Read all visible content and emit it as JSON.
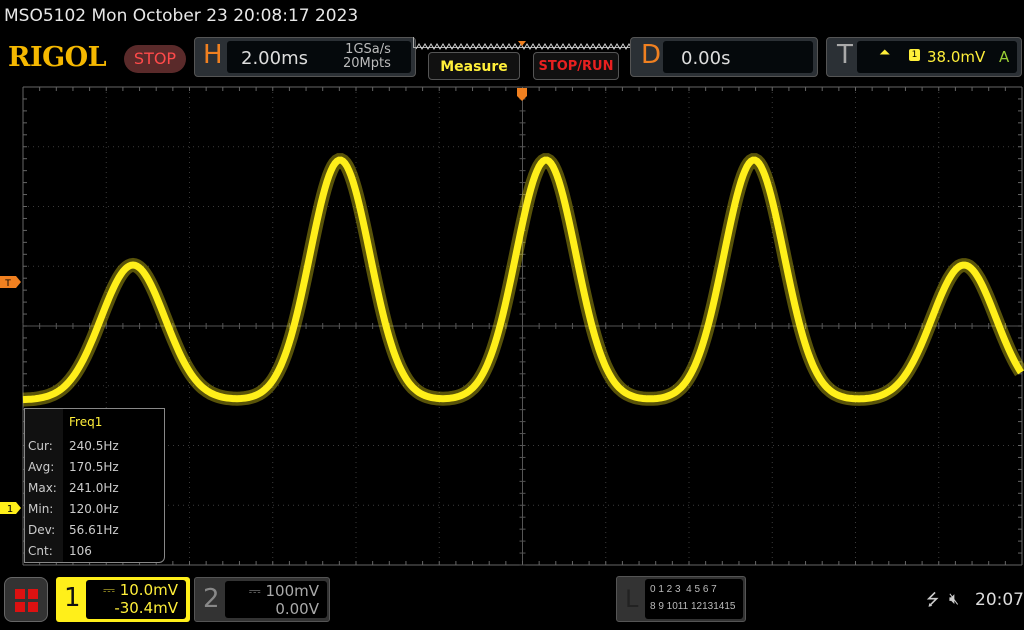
{
  "header": {
    "title": "MSO5102  Mon October 23 20:08:17 2023",
    "logo": "RIGOL",
    "run_state": "STOP"
  },
  "horizontal": {
    "label": "H",
    "timebase": "2.00ms",
    "sample_rate": "1GSa/s",
    "memory_depth": "20Mpts"
  },
  "buttons": {
    "measure": "Measure",
    "stop_run": "STOP/RUN"
  },
  "delay": {
    "label": "D",
    "value": "0.00s"
  },
  "trigger": {
    "label": "T",
    "edge_icon": "rising-edge-icon",
    "source": "1",
    "level": "38.0mV",
    "mode": "A",
    "marker": "T"
  },
  "measurement": {
    "title": "Freq1",
    "rows": [
      {
        "label": "Cur:",
        "value": "240.5Hz"
      },
      {
        "label": "Avg:",
        "value": "170.5Hz"
      },
      {
        "label": "Max:",
        "value": "241.0Hz"
      },
      {
        "label": "Min:",
        "value": "120.0Hz"
      },
      {
        "label": "Dev:",
        "value": "56.61Hz"
      },
      {
        "label": "Cnt:",
        "value": "106"
      }
    ]
  },
  "channels": [
    {
      "number": "1",
      "scale": "10.0mV",
      "offset": "-30.4mV",
      "color": "#ffef1a",
      "marker": "1"
    },
    {
      "number": "2",
      "scale": "100mV",
      "offset": "0.00V",
      "color": "#888888"
    }
  ],
  "logic": {
    "label": "L",
    "row1": "0 1 2 3  4 5 6 7",
    "row2": "8 9 1011 12131415"
  },
  "status": {
    "clock": "20:07",
    "usb_icon": "usb-icon",
    "sound_icon": "speaker-muted-icon"
  },
  "colors": {
    "trace": "#ffef1a",
    "accent": "#f08020",
    "stop": "#ff4a4a"
  }
}
